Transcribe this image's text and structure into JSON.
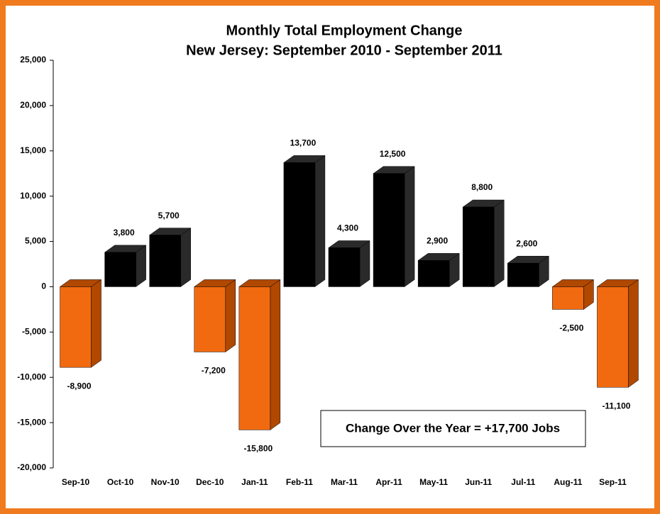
{
  "chart_data": {
    "type": "bar3d",
    "title": "Monthly Total Employment Change",
    "subtitle": "New Jersey: September 2010 - September 2011",
    "categories": [
      "Sep-10",
      "Oct-10",
      "Nov-10",
      "Dec-10",
      "Jan-11",
      "Feb-11",
      "Mar-11",
      "Apr-11",
      "May-11",
      "Jun-11",
      "Jul-11",
      "Aug-11",
      "Sep-11"
    ],
    "values": [
      -8900,
      3800,
      5700,
      -7200,
      -15800,
      13700,
      4300,
      12500,
      2900,
      8800,
      2600,
      -2500,
      -11100
    ],
    "value_labels": [
      "-8,900",
      "3,800",
      "5,700",
      "-7,200",
      "-15,800",
      "13,700",
      "4,300",
      "12,500",
      "2,900",
      "8,800",
      "2,600",
      "-2,500",
      "-11,100"
    ],
    "colors": [
      "#f26a10",
      "#000000",
      "#000000",
      "#f26a10",
      "#f26a10",
      "#000000",
      "#000000",
      "#000000",
      "#000000",
      "#000000",
      "#000000",
      "#f26a10",
      "#f26a10"
    ],
    "ylim": [
      -20000,
      25000
    ],
    "yticks": [
      {
        "value": -20000,
        "label": "-20,000"
      },
      {
        "value": -15000,
        "label": "-15,000"
      },
      {
        "value": -10000,
        "label": "-10,000"
      },
      {
        "value": -5000,
        "label": "-5,000"
      },
      0,
      {
        "value": 5000,
        "label": "5,000"
      },
      {
        "value": 10000,
        "label": "10,000"
      },
      {
        "value": 15000,
        "label": "15,000"
      },
      {
        "value": 20000,
        "label": "20,000"
      },
      {
        "value": 25000,
        "label": "25,000"
      }
    ],
    "annotation": "Change Over the Year = +17,700 Jobs"
  }
}
